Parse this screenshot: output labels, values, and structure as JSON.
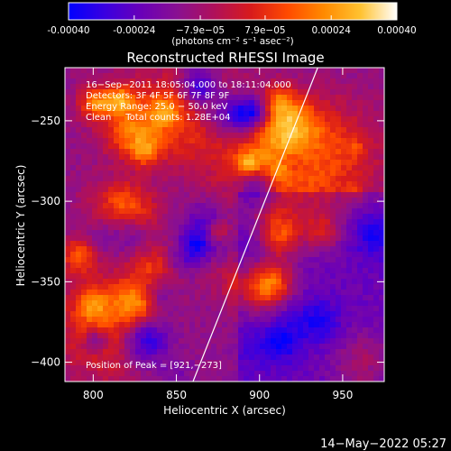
{
  "chart_data": {
    "type": "heatmap",
    "title": "Reconstructed RHESSI Image",
    "xlabel": "Heliocentric X (arcsec)",
    "ylabel": "Heliocentric Y (arcsec)",
    "xlim": [
      783,
      975
    ],
    "ylim": [
      -412,
      -217
    ],
    "xticks": [
      800,
      850,
      900,
      950
    ],
    "yticks": [
      -250,
      -300,
      -350,
      -400
    ],
    "colorbar": {
      "range": [
        -0.0004,
        0.0004
      ],
      "tick_values": [
        -0.0004,
        -0.00024,
        -7.9e-05,
        7.9e-05,
        0.00024,
        0.0004
      ],
      "tick_labels": [
        "-0.00040",
        "-0.00024",
        "−7.9e−05",
        "7.9e−05",
        "0.00024",
        "0.00040"
      ],
      "unit_label": "(photons cm⁻² s⁻¹ asec⁻²)",
      "colormap_stops": [
        "#0000ff",
        "#3a00e0",
        "#6a00b8",
        "#8a1090",
        "#b0105a",
        "#d81b1b",
        "#ff4a00",
        "#ff8a00",
        "#ffc230",
        "#ffffff"
      ]
    },
    "limb_line": {
      "from": [
        860,
        -412
      ],
      "to": [
        935,
        -217
      ]
    },
    "peak": [
      921,
      -273
    ],
    "annotations": [
      "16−Sep−2011 18:05:04.000 to 18:11:04.000",
      "Detectors: 3F 4F 5F 6F 7F 8F 9F",
      "Energy Range: 25.0 − 50.0 keV",
      "Clean     Total counts: 1.28E+04",
      "Position of Peak = [921,−273]"
    ],
    "footer_date": "14−May−2022 05:27"
  }
}
